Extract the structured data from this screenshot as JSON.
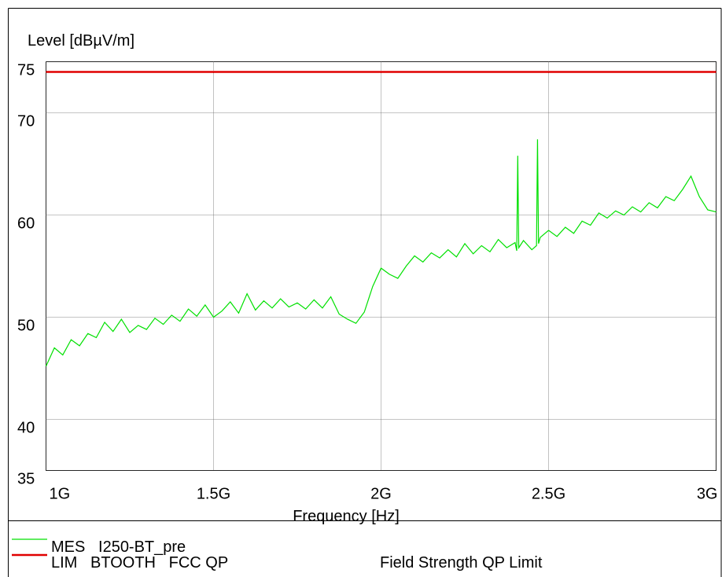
{
  "chart_data": {
    "type": "line",
    "title": "Level [dBµV/m]",
    "x_label": "Frequency [Hz]",
    "xlim": [
      1000000000,
      3000000000
    ],
    "xticks": [
      {
        "value": 1000000000,
        "label": "1G"
      },
      {
        "value": 1500000000,
        "label": "1.5G"
      },
      {
        "value": 2000000000,
        "label": "2G"
      },
      {
        "value": 2500000000,
        "label": "2.5G"
      },
      {
        "value": 3000000000,
        "label": "3G"
      }
    ],
    "ylim": [
      35,
      75
    ],
    "yticks": [
      35,
      40,
      50,
      60,
      70,
      75
    ],
    "grid": true,
    "series": [
      {
        "name": "MES   I250-BT_pre",
        "color": "#00e000",
        "x": [
          1000000000,
          1025000000,
          1050000000,
          1075000000,
          1100000000,
          1125000000,
          1150000000,
          1175000000,
          1200000000,
          1225000000,
          1250000000,
          1275000000,
          1300000000,
          1325000000,
          1350000000,
          1375000000,
          1400000000,
          1425000000,
          1450000000,
          1475000000,
          1500000000,
          1525000000,
          1550000000,
          1575000000,
          1600000000,
          1625000000,
          1650000000,
          1675000000,
          1700000000,
          1725000000,
          1750000000,
          1775000000,
          1800000000,
          1825000000,
          1850000000,
          1875000000,
          1900000000,
          1925000000,
          1950000000,
          1975000000,
          2000000000,
          2025000000,
          2050000000,
          2075000000,
          2100000000,
          2125000000,
          2150000000,
          2175000000,
          2200000000,
          2225000000,
          2250000000,
          2275000000,
          2300000000,
          2325000000,
          2350000000,
          2375000000,
          2400000000,
          2405000000,
          2408000000,
          2411000000,
          2425000000,
          2450000000,
          2464000000,
          2467000000,
          2470000000,
          2475000000,
          2500000000,
          2525000000,
          2550000000,
          2575000000,
          2600000000,
          2625000000,
          2650000000,
          2675000000,
          2700000000,
          2725000000,
          2750000000,
          2775000000,
          2800000000,
          2825000000,
          2850000000,
          2875000000,
          2900000000,
          2925000000,
          2950000000,
          2975000000,
          3000000000
        ],
        "values": [
          45.2,
          47.0,
          46.3,
          47.8,
          47.2,
          48.4,
          48.0,
          49.5,
          48.6,
          49.8,
          48.5,
          49.2,
          48.8,
          49.9,
          49.3,
          50.2,
          49.6,
          50.8,
          50.1,
          51.2,
          50.0,
          50.6,
          51.5,
          50.4,
          52.3,
          50.7,
          51.6,
          50.9,
          51.8,
          51.0,
          51.4,
          50.8,
          51.7,
          50.9,
          52.0,
          50.3,
          49.8,
          49.4,
          50.5,
          53.0,
          54.8,
          54.2,
          53.8,
          55.0,
          56.0,
          55.4,
          56.3,
          55.8,
          56.6,
          55.9,
          57.2,
          56.2,
          57.0,
          56.4,
          57.6,
          56.8,
          57.3,
          56.5,
          65.8,
          56.8,
          57.5,
          56.6,
          57.0,
          67.4,
          57.2,
          57.8,
          58.5,
          57.9,
          58.8,
          58.2,
          59.4,
          59.0,
          60.2,
          59.7,
          60.4,
          60.0,
          60.8,
          60.3,
          61.2,
          60.7,
          61.8,
          61.4,
          62.5,
          63.8,
          61.8,
          60.5,
          60.3
        ]
      },
      {
        "name": "LIM   BTOOTH   FCC QP",
        "description": "Field Strength QP Limit",
        "color": "#e00000",
        "x": [
          1000000000,
          3000000000
        ],
        "values": [
          74,
          74
        ]
      }
    ]
  }
}
